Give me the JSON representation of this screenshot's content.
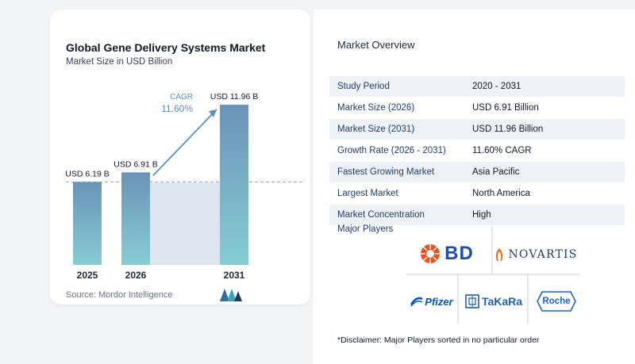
{
  "chart_data": {
    "type": "bar",
    "title": "Global Gene Delivery Systems Market",
    "subtitle": "Market Size in USD Billion",
    "categories": [
      "2025",
      "2026",
      "2031"
    ],
    "values": [
      6.19,
      6.91,
      11.96
    ],
    "value_labels": [
      "USD 6.19 B",
      "USD 6.91 B",
      "USD 11.96 B"
    ],
    "cagr_label": "CAGR",
    "cagr_value": "11.60%",
    "bar_color_top": "#6b93b8",
    "bar_color_bottom": "#86cdd3",
    "band_color": "#dde6f0"
  },
  "source": "Source:  Mordor Intelligence",
  "overview": {
    "title": "Market Overview",
    "rows": [
      {
        "label": "Study Period",
        "value": "2020 - 2031"
      },
      {
        "label": "Market Size (2026)",
        "value": "USD 6.91 Billion"
      },
      {
        "label": "Market Size (2031)",
        "value": "USD 11.96 Billion"
      },
      {
        "label": "Growth Rate (2026 - 2031)",
        "value": "11.60% CAGR"
      },
      {
        "label": "Fastest Growing Market",
        "value": "Asia Pacific"
      },
      {
        "label": "Largest Market",
        "value": "North America"
      },
      {
        "label": "Market Concentration",
        "value": "High"
      }
    ]
  },
  "players": {
    "title": "Major Players",
    "names": {
      "bd": "BD",
      "novartis": "NOVARTIS",
      "pfizer": "Pfizer",
      "takara": "TaKaRa",
      "roche": "Roche"
    }
  },
  "disclaimer": "*Disclaimer: Major Players sorted in no particular order",
  "colors": {
    "accent": "#1e3a5f",
    "bd_orange": "#e5541f",
    "bd_blue": "#1f4e9c",
    "novartis_orange": "#e8742a",
    "pfizer_blue": "#0057b8",
    "takara_blue": "#1f5fa8",
    "roche_blue": "#1e64c8"
  }
}
